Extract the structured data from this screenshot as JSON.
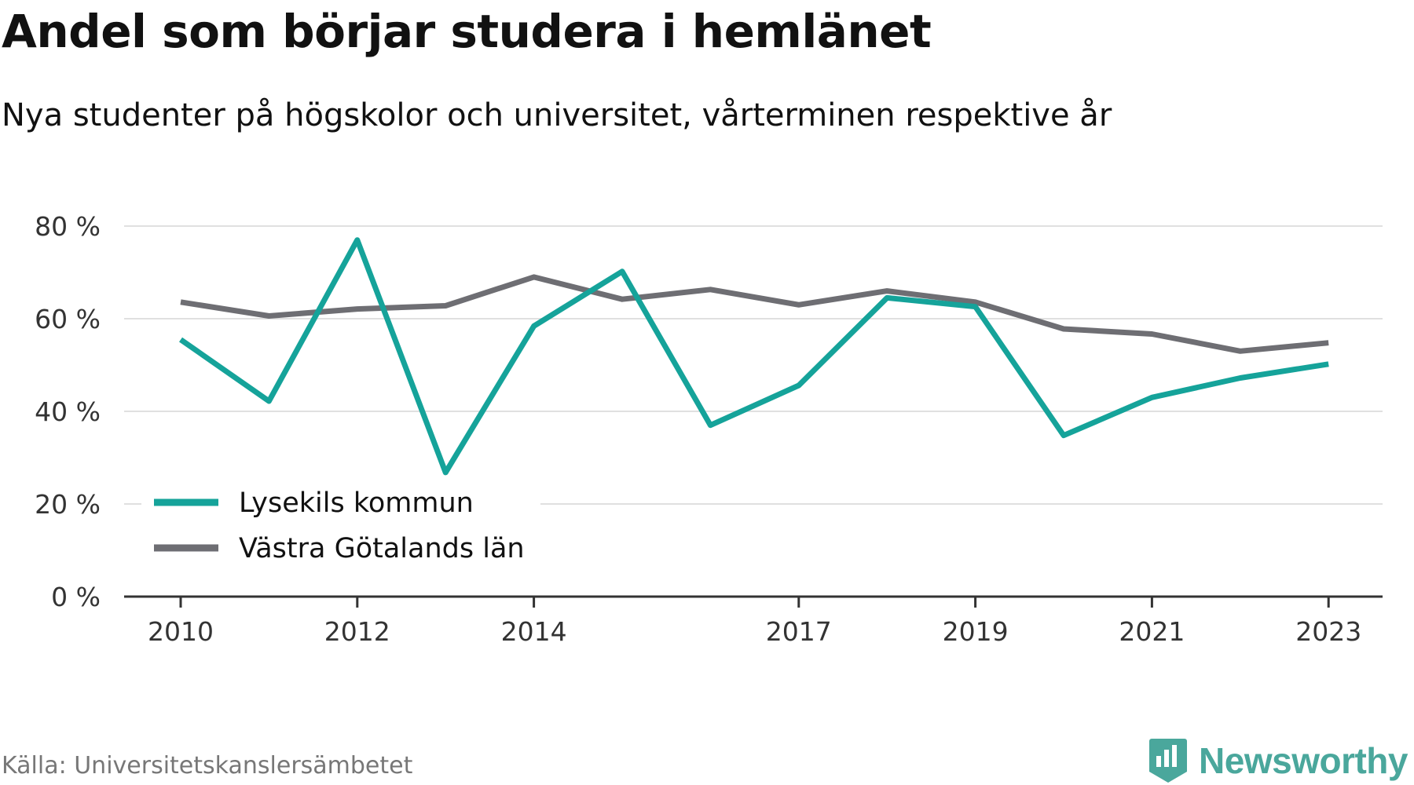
{
  "header": {
    "title": "Andel som börjar studera i hemlänet",
    "subtitle": "Nya studenter på högskolor och universitet, vårterminen respektive år"
  },
  "footer": {
    "source": "Källa: Universitetskanslersämbetet",
    "brand": "Newsworthy",
    "brand_icon": "bar-chart-badge-icon"
  },
  "colors": {
    "lysekil": "#15a39a",
    "vastra_gotaland": "#6e6e73",
    "brand": "#4aa79c",
    "grid": "#e0e0e0",
    "axis": "#333333"
  },
  "chart_data": {
    "type": "line",
    "x": [
      2010,
      2011,
      2012,
      2013,
      2014,
      2015,
      2016,
      2017,
      2018,
      2019,
      2020,
      2021,
      2022,
      2023
    ],
    "x_tick_labels": [
      "2010",
      "2012",
      "2014",
      "2017",
      "2019",
      "2021",
      "2023"
    ],
    "x_tick_values": [
      2010,
      2012,
      2014,
      2017,
      2019,
      2021,
      2023
    ],
    "y_tick_labels": [
      "0 %",
      "20 %",
      "40 %",
      "60 %",
      "80 %"
    ],
    "y_tick_values": [
      0,
      20,
      40,
      60,
      80
    ],
    "ylim": [
      0,
      80
    ],
    "grid": true,
    "legend_position": "bottom-left",
    "series": [
      {
        "name": "Lysekils kommun",
        "color": "#15a39a",
        "values": [
          55.5,
          42.2,
          77.0,
          26.8,
          58.4,
          70.2,
          37.0,
          45.6,
          64.5,
          62.6,
          34.8,
          43.0,
          47.2,
          50.2
        ]
      },
      {
        "name": "Västra Götalands län",
        "color": "#6e6e73",
        "values": [
          63.6,
          60.6,
          62.1,
          62.8,
          69.0,
          64.2,
          66.3,
          63.0,
          66.0,
          63.6,
          57.8,
          56.7,
          53.0,
          54.8
        ]
      }
    ]
  }
}
